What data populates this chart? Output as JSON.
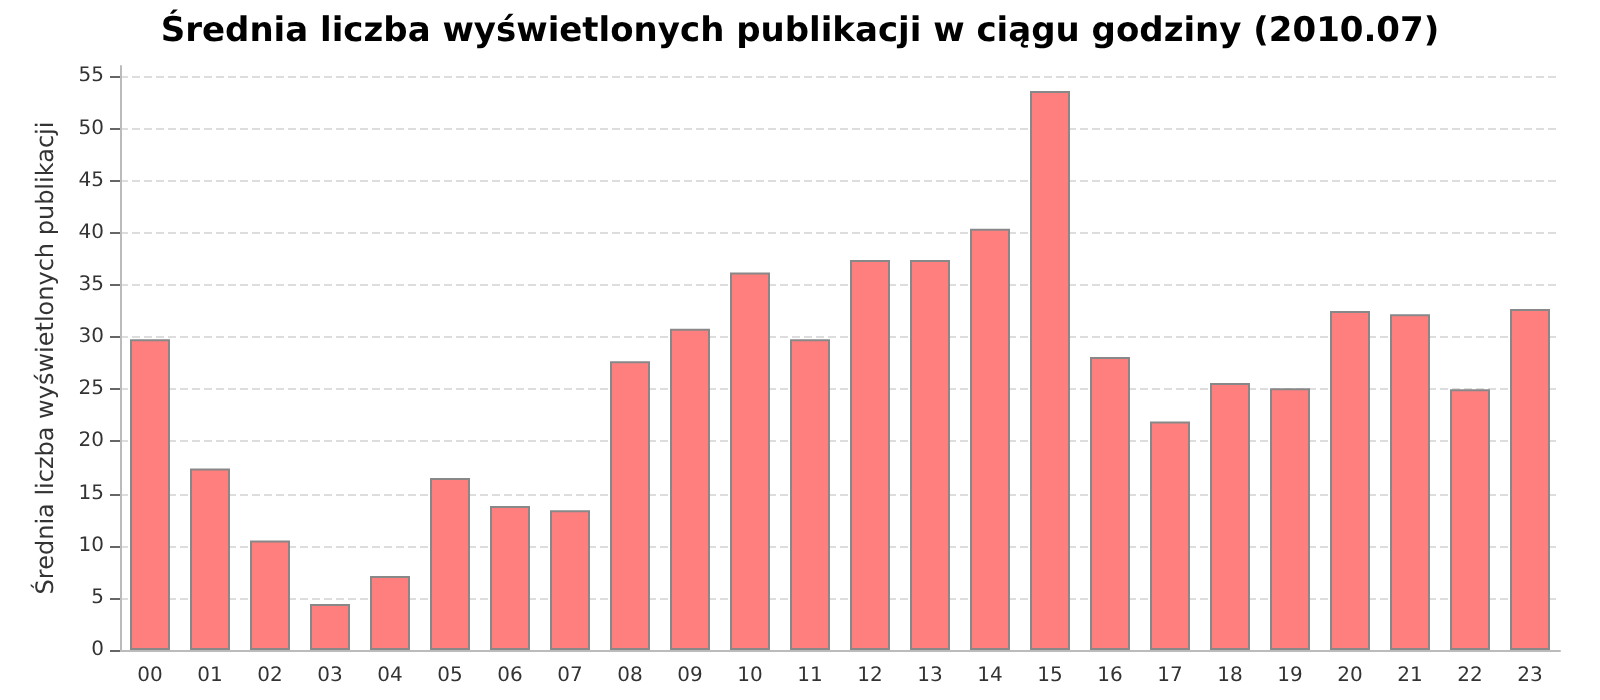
{
  "chart_data": {
    "type": "bar",
    "title": "Średnia liczba wyświetlonych publikacji w ciągu godziny (2010.07)",
    "ylabel": "Średnia liczba wyświetlonych publikacji",
    "categories": [
      "00",
      "01",
      "02",
      "03",
      "04",
      "05",
      "06",
      "07",
      "08",
      "09",
      "10",
      "11",
      "12",
      "13",
      "14",
      "15",
      "16",
      "17",
      "18",
      "19",
      "20",
      "21",
      "22",
      "23"
    ],
    "values": [
      29.8,
      17.4,
      10.5,
      4.4,
      7.1,
      16.5,
      13.8,
      13.4,
      27.7,
      30.8,
      36.2,
      29.8,
      37.4,
      37.4,
      40.4,
      53.6,
      28.1,
      21.9,
      25.6,
      25.1,
      32.5,
      32.2,
      25.0,
      32.7
    ],
    "color": "#ff7f7f",
    "ylim": [
      0,
      56
    ],
    "yticks": [
      0,
      5,
      10,
      15,
      20,
      25,
      30,
      35,
      40,
      45,
      50,
      55
    ],
    "grid": "y"
  }
}
